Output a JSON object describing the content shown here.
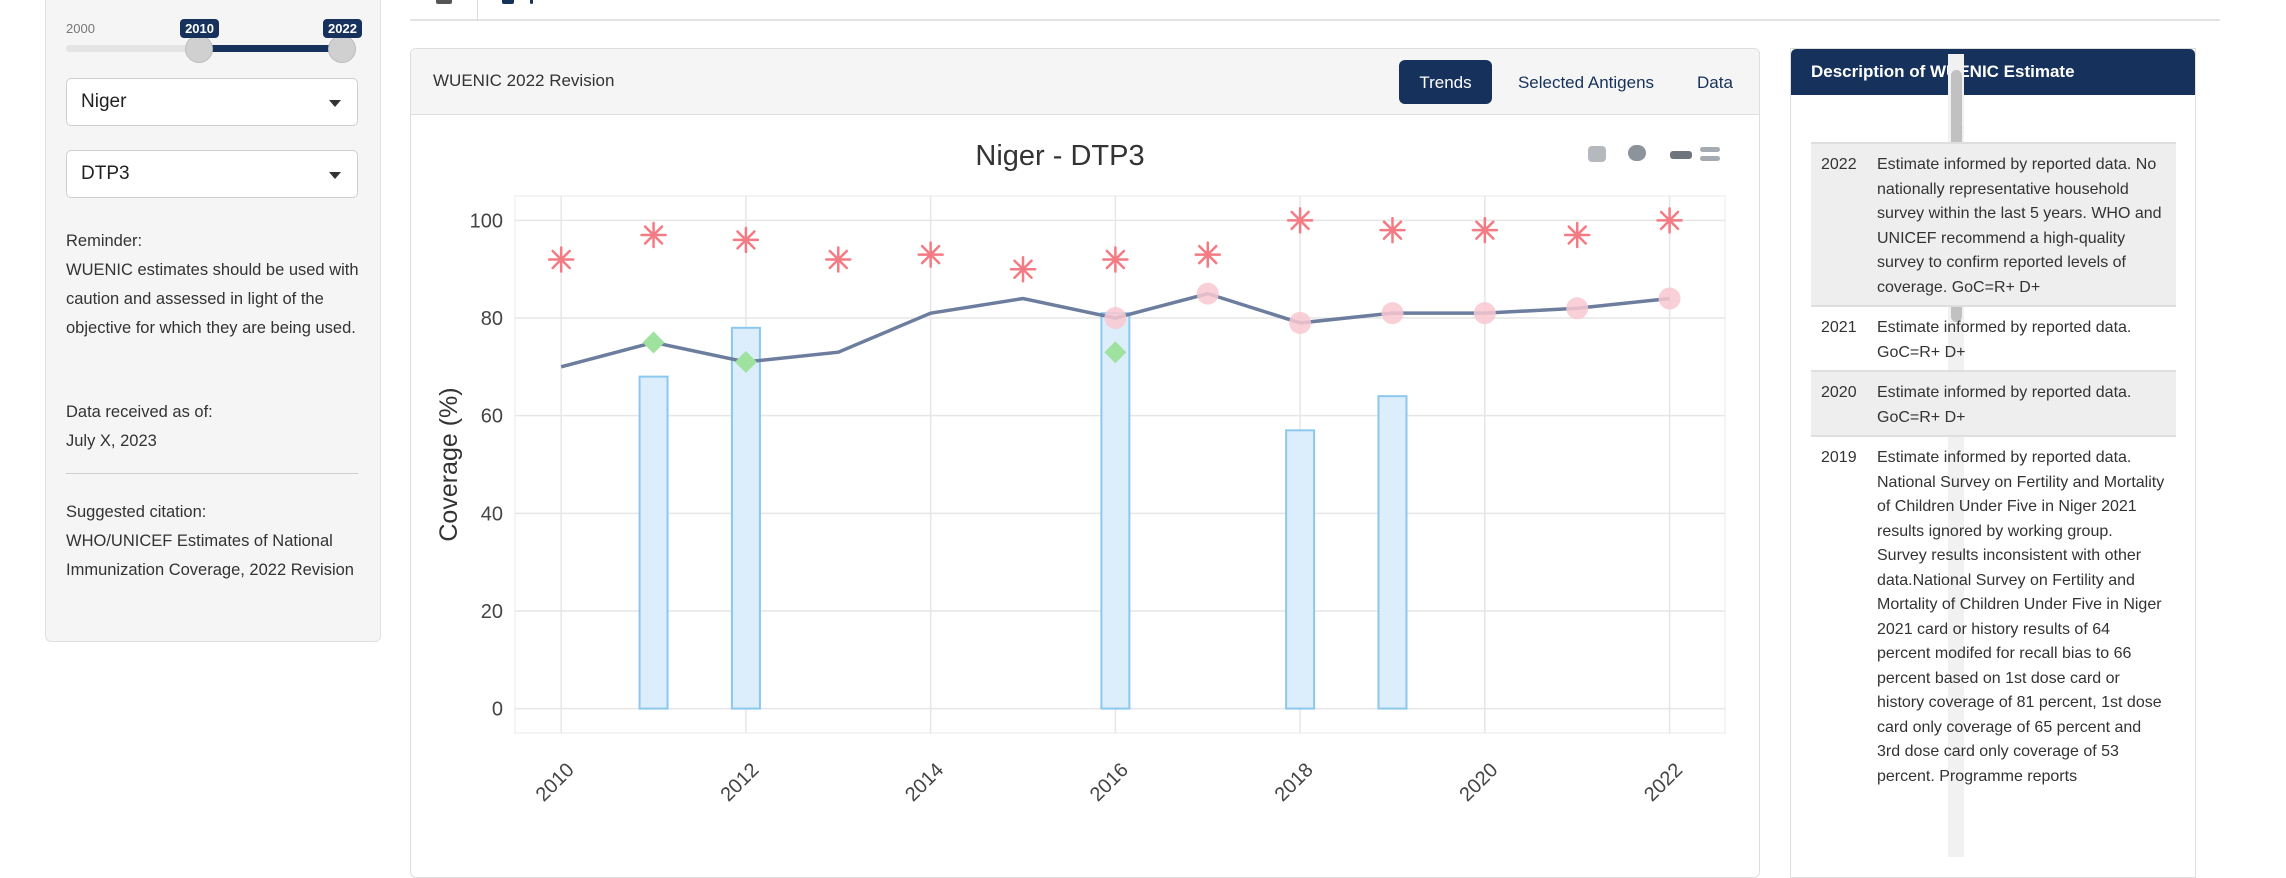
{
  "sidebar": {
    "slider": {
      "min_label": "2000",
      "from_label": "2010",
      "to_label": "2022",
      "min": 2000,
      "max": 2022,
      "from": 2010,
      "to": 2022
    },
    "country_select": {
      "value": "Niger"
    },
    "vaccine_select": {
      "value": "DTP3"
    },
    "reminder_title": "Reminder:",
    "reminder_text": "WUENIC estimates should be used with caution and assessed in light of the objective for which they are being used.",
    "data_received_label": "Data received as of:",
    "data_received_date": "July X, 2023",
    "citation_label": "Suggested citation:",
    "citation_text": "WHO/UNICEF Estimates of National Immunization Coverage, 2022 Revision"
  },
  "card": {
    "title": "WUENIC 2022 Revision",
    "tabs": [
      {
        "label": "Trends",
        "active": true
      },
      {
        "label": "Selected Antigens",
        "active": false
      },
      {
        "label": "Data",
        "active": false
      }
    ]
  },
  "chart_data": {
    "type": "line",
    "title": "Niger - DTP3",
    "xlabel": "",
    "ylabel": "Coverage (%)",
    "xlim": [
      2009.5,
      2022.6
    ],
    "ylim": [
      -5,
      105
    ],
    "xticks": [
      2010,
      2012,
      2014,
      2016,
      2018,
      2020,
      2022
    ],
    "yticks": [
      0,
      20,
      40,
      60,
      80,
      100
    ],
    "grid": true,
    "colors": {
      "estimate_line": "#6c7d9e",
      "reported_marker": "#f47a83",
      "official_marker": "#f9c8d1",
      "survey_bar_fill": "#dceefb",
      "survey_bar_edge": "#8cc8ee",
      "diamond_marker": "#9fe29f"
    },
    "series": [
      {
        "kind": "line",
        "x": [
          2010,
          2011,
          2012,
          2013,
          2014,
          2015,
          2016,
          2017,
          2018,
          2019,
          2020,
          2021,
          2022
        ],
        "values": [
          70,
          75,
          71,
          73,
          81,
          84,
          80,
          85,
          79,
          81,
          81,
          82,
          84
        ]
      },
      {
        "kind": "asterisk",
        "x": [
          2010,
          2011,
          2012,
          2013,
          2014,
          2015,
          2016,
          2017,
          2018,
          2019,
          2020,
          2021,
          2022
        ],
        "values": [
          92,
          97,
          96,
          92,
          93,
          90,
          92,
          93,
          100,
          98,
          98,
          97,
          100
        ]
      },
      {
        "kind": "circle",
        "x": [
          2016,
          2017,
          2018,
          2019,
          2020,
          2021,
          2022
        ],
        "values": [
          80,
          85,
          79,
          81,
          81,
          82,
          84
        ]
      },
      {
        "kind": "bar",
        "x": [
          2011,
          2012,
          2016,
          2018,
          2019
        ],
        "values": [
          68,
          78,
          81,
          57,
          64
        ]
      },
      {
        "kind": "diamond",
        "x": [
          2011,
          2012,
          2016
        ],
        "values": [
          75,
          71,
          73
        ]
      }
    ]
  },
  "description": {
    "title": "Description of WUENIC Estimate",
    "rows": [
      {
        "year": "2022",
        "text": "Estimate informed by reported data. No nationally representative household survey within the last 5 years. WHO and UNICEF recommend a high-quality survey to confirm reported levels of coverage. GoC=R+ D+"
      },
      {
        "year": "2021",
        "text": "Estimate informed by reported data. GoC=R+ D+"
      },
      {
        "year": "2020",
        "text": "Estimate informed by reported data. GoC=R+ D+"
      },
      {
        "year": "2019",
        "text": "Estimate informed by reported data. National Survey on Fertility and Mortality of Children Under Five in Niger 2021 results ignored by working group. Survey results inconsistent with other data.National Survey on Fertility and Mortality of Children Under Five in Niger 2021 card or history results of 64 percent modifed for recall bias to 66 percent based on 1st dose card or history coverage of 81 percent, 1st dose card only coverage of 65 percent and 3rd dose card only coverage of 53 percent. Programme reports"
      }
    ]
  }
}
